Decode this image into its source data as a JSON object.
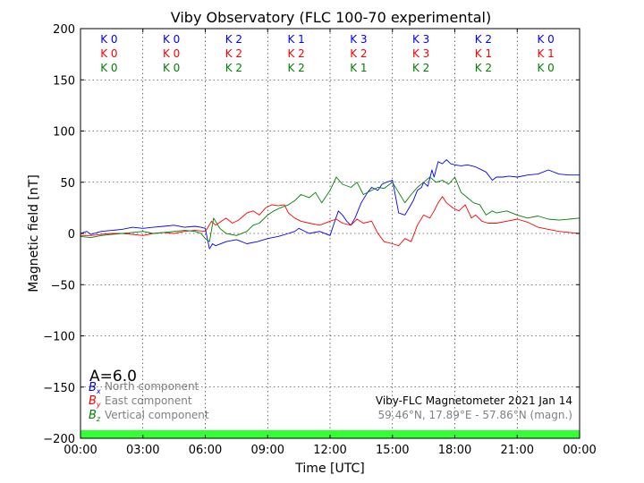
{
  "chart_data": {
    "type": "line",
    "title": "Viby Observatory (FLC 100-70 experimental)",
    "xlabel": "Time [UTC]",
    "ylabel": "Magnetic field [nT]",
    "xlim": [
      0,
      24
    ],
    "ylim": [
      -200,
      200
    ],
    "xticks": [
      0,
      3,
      6,
      9,
      12,
      15,
      18,
      21,
      24
    ],
    "xtick_labels": [
      "00:00",
      "03:00",
      "06:00",
      "09:00",
      "12:00",
      "15:00",
      "18:00",
      "21:00",
      "00:00"
    ],
    "yticks": [
      -200,
      -150,
      -100,
      -50,
      0,
      50,
      100,
      150,
      200
    ],
    "ytick_labels": [
      "−200",
      "−150",
      "−100",
      "−50",
      "0",
      "50",
      "100",
      "150",
      "200"
    ],
    "grid": true,
    "series": [
      {
        "name": "North component",
        "symbol_letter": "B",
        "symbol_sub": "x",
        "color": "#0000ff",
        "x": [
          0,
          0.3,
          0.5,
          1,
          1.5,
          2,
          2.5,
          3,
          3.5,
          4,
          4.5,
          5,
          5.5,
          5.8,
          6.0,
          6.1,
          6.2,
          6.35,
          6.5,
          7,
          7.5,
          8,
          8.5,
          9,
          9.5,
          10,
          10.3,
          10.5,
          10.7,
          11,
          11.5,
          12,
          12.2,
          12.4,
          12.6,
          12.8,
          13.0,
          13.2,
          13.5,
          13.8,
          14,
          14.3,
          14.5,
          14.7,
          15,
          15.3,
          15.6,
          15.8,
          16,
          16.2,
          16.4,
          16.5,
          16.7,
          16.9,
          17.0,
          17.2,
          17.4,
          17.6,
          17.8,
          18.0,
          18.3,
          18.6,
          19,
          19.5,
          19.8,
          20.0,
          20.3,
          20.6,
          21,
          21.5,
          22,
          22.5,
          23,
          23.5,
          24
        ],
        "values": [
          0,
          2,
          -1,
          2,
          3,
          4,
          6,
          5,
          6,
          7,
          8,
          6,
          7,
          6,
          5,
          -5,
          -15,
          -10,
          -12,
          -8,
          -6,
          -10,
          -8,
          -5,
          -3,
          0,
          2,
          5,
          3,
          0,
          2,
          -2,
          10,
          22,
          18,
          12,
          8,
          15,
          30,
          40,
          45,
          42,
          48,
          50,
          52,
          20,
          18,
          25,
          32,
          42,
          45,
          50,
          46,
          62,
          55,
          70,
          68,
          72,
          68,
          67,
          66,
          67,
          65,
          60,
          52,
          55,
          55,
          56,
          55,
          57,
          58,
          62,
          58,
          57,
          57
        ]
      },
      {
        "name": "East component",
        "symbol_letter": "B",
        "symbol_sub": "y",
        "color": "#ff0000",
        "x": [
          0,
          0.5,
          1,
          1.5,
          2,
          2.5,
          3,
          3.5,
          4,
          4.5,
          5,
          5.5,
          6,
          6.1,
          6.3,
          6.5,
          7,
          7.3,
          7.6,
          8,
          8.3,
          8.6,
          8.9,
          9.2,
          9.5,
          9.8,
          10.0,
          10.3,
          10.6,
          11,
          11.5,
          12,
          12.3,
          12.6,
          13,
          13.3,
          13.6,
          14.0,
          14.3,
          14.6,
          15,
          15.3,
          15.6,
          15.9,
          16.2,
          16.5,
          16.8,
          17.0,
          17.2,
          17.4,
          17.6,
          17.9,
          18.2,
          18.5,
          18.8,
          19,
          19.3,
          19.6,
          20.0,
          20.5,
          21,
          21.5,
          22,
          22.5,
          23,
          23.5,
          24
        ],
        "values": [
          -2,
          -2,
          -1,
          0,
          0,
          -1,
          -2,
          0,
          1,
          0,
          2,
          3,
          2,
          5,
          12,
          8,
          15,
          10,
          13,
          20,
          22,
          18,
          25,
          28,
          27,
          28,
          20,
          15,
          12,
          10,
          8,
          12,
          14,
          10,
          8,
          14,
          10,
          12,
          0,
          -8,
          -10,
          -12,
          -5,
          -8,
          8,
          18,
          15,
          22,
          30,
          36,
          30,
          25,
          22,
          28,
          15,
          18,
          12,
          10,
          10,
          12,
          14,
          11,
          6,
          4,
          2,
          1,
          0
        ]
      },
      {
        "name": "Vertical component",
        "symbol_letter": "B",
        "symbol_sub": "z",
        "color": "#008000",
        "x": [
          0,
          0.5,
          1,
          1.5,
          2,
          2.5,
          3,
          3.5,
          4,
          4.5,
          5,
          5.5,
          5.8,
          6.0,
          6.2,
          6.4,
          6.7,
          7,
          7.5,
          8,
          8.3,
          8.6,
          9.0,
          9.3,
          9.6,
          10.0,
          10.3,
          10.6,
          11.0,
          11.3,
          11.6,
          12,
          12.3,
          12.6,
          13,
          13.3,
          13.6,
          14,
          14.3,
          14.6,
          15,
          15.3,
          15.6,
          15.9,
          16.2,
          16.5,
          16.8,
          17.1,
          17.4,
          17.7,
          18.0,
          18.3,
          18.6,
          18.9,
          19.2,
          19.5,
          19.8,
          20,
          20.5,
          21,
          21.5,
          22,
          22.5,
          23,
          23.5,
          24
        ],
        "values": [
          -3,
          -4,
          -2,
          -1,
          0,
          1,
          2,
          0,
          1,
          2,
          3,
          2,
          0,
          -5,
          -8,
          15,
          5,
          0,
          -2,
          2,
          8,
          10,
          18,
          22,
          25,
          28,
          32,
          38,
          35,
          40,
          30,
          42,
          55,
          48,
          45,
          50,
          38,
          42,
          45,
          44,
          50,
          40,
          30,
          38,
          45,
          50,
          55,
          50,
          52,
          48,
          55,
          40,
          35,
          30,
          28,
          18,
          22,
          20,
          22,
          18,
          15,
          17,
          14,
          13,
          14,
          15
        ]
      }
    ],
    "k_index": {
      "times": [
        "00-03",
        "03-06",
        "06-09",
        "09-12",
        "12-15",
        "15-18",
        "18-21",
        "21-24"
      ],
      "rows": [
        {
          "component": "x",
          "color": "#0000ff",
          "labels": [
            "K 0",
            "K 0",
            "K 2",
            "K 1",
            "K 3",
            "K 3",
            "K 2",
            "K 0"
          ]
        },
        {
          "component": "y",
          "color": "#ff0000",
          "labels": [
            "K 0",
            "K 0",
            "K 2",
            "K 2",
            "K 2",
            "K 3",
            "K 1",
            "K 1"
          ]
        },
        {
          "component": "z",
          "color": "#008000",
          "labels": [
            "K 0",
            "K 0",
            "K 2",
            "K 2",
            "K 1",
            "K 2",
            "K 2",
            "K 0"
          ]
        }
      ]
    },
    "a_index_label": "A=6.0",
    "info_line1": "Viby-FLC Magnetometer 2021 Jan 14",
    "info_line2": "59.46°N, 17.89°E - 57.86°N (magn.)",
    "status_band_color": "#33ff33"
  }
}
